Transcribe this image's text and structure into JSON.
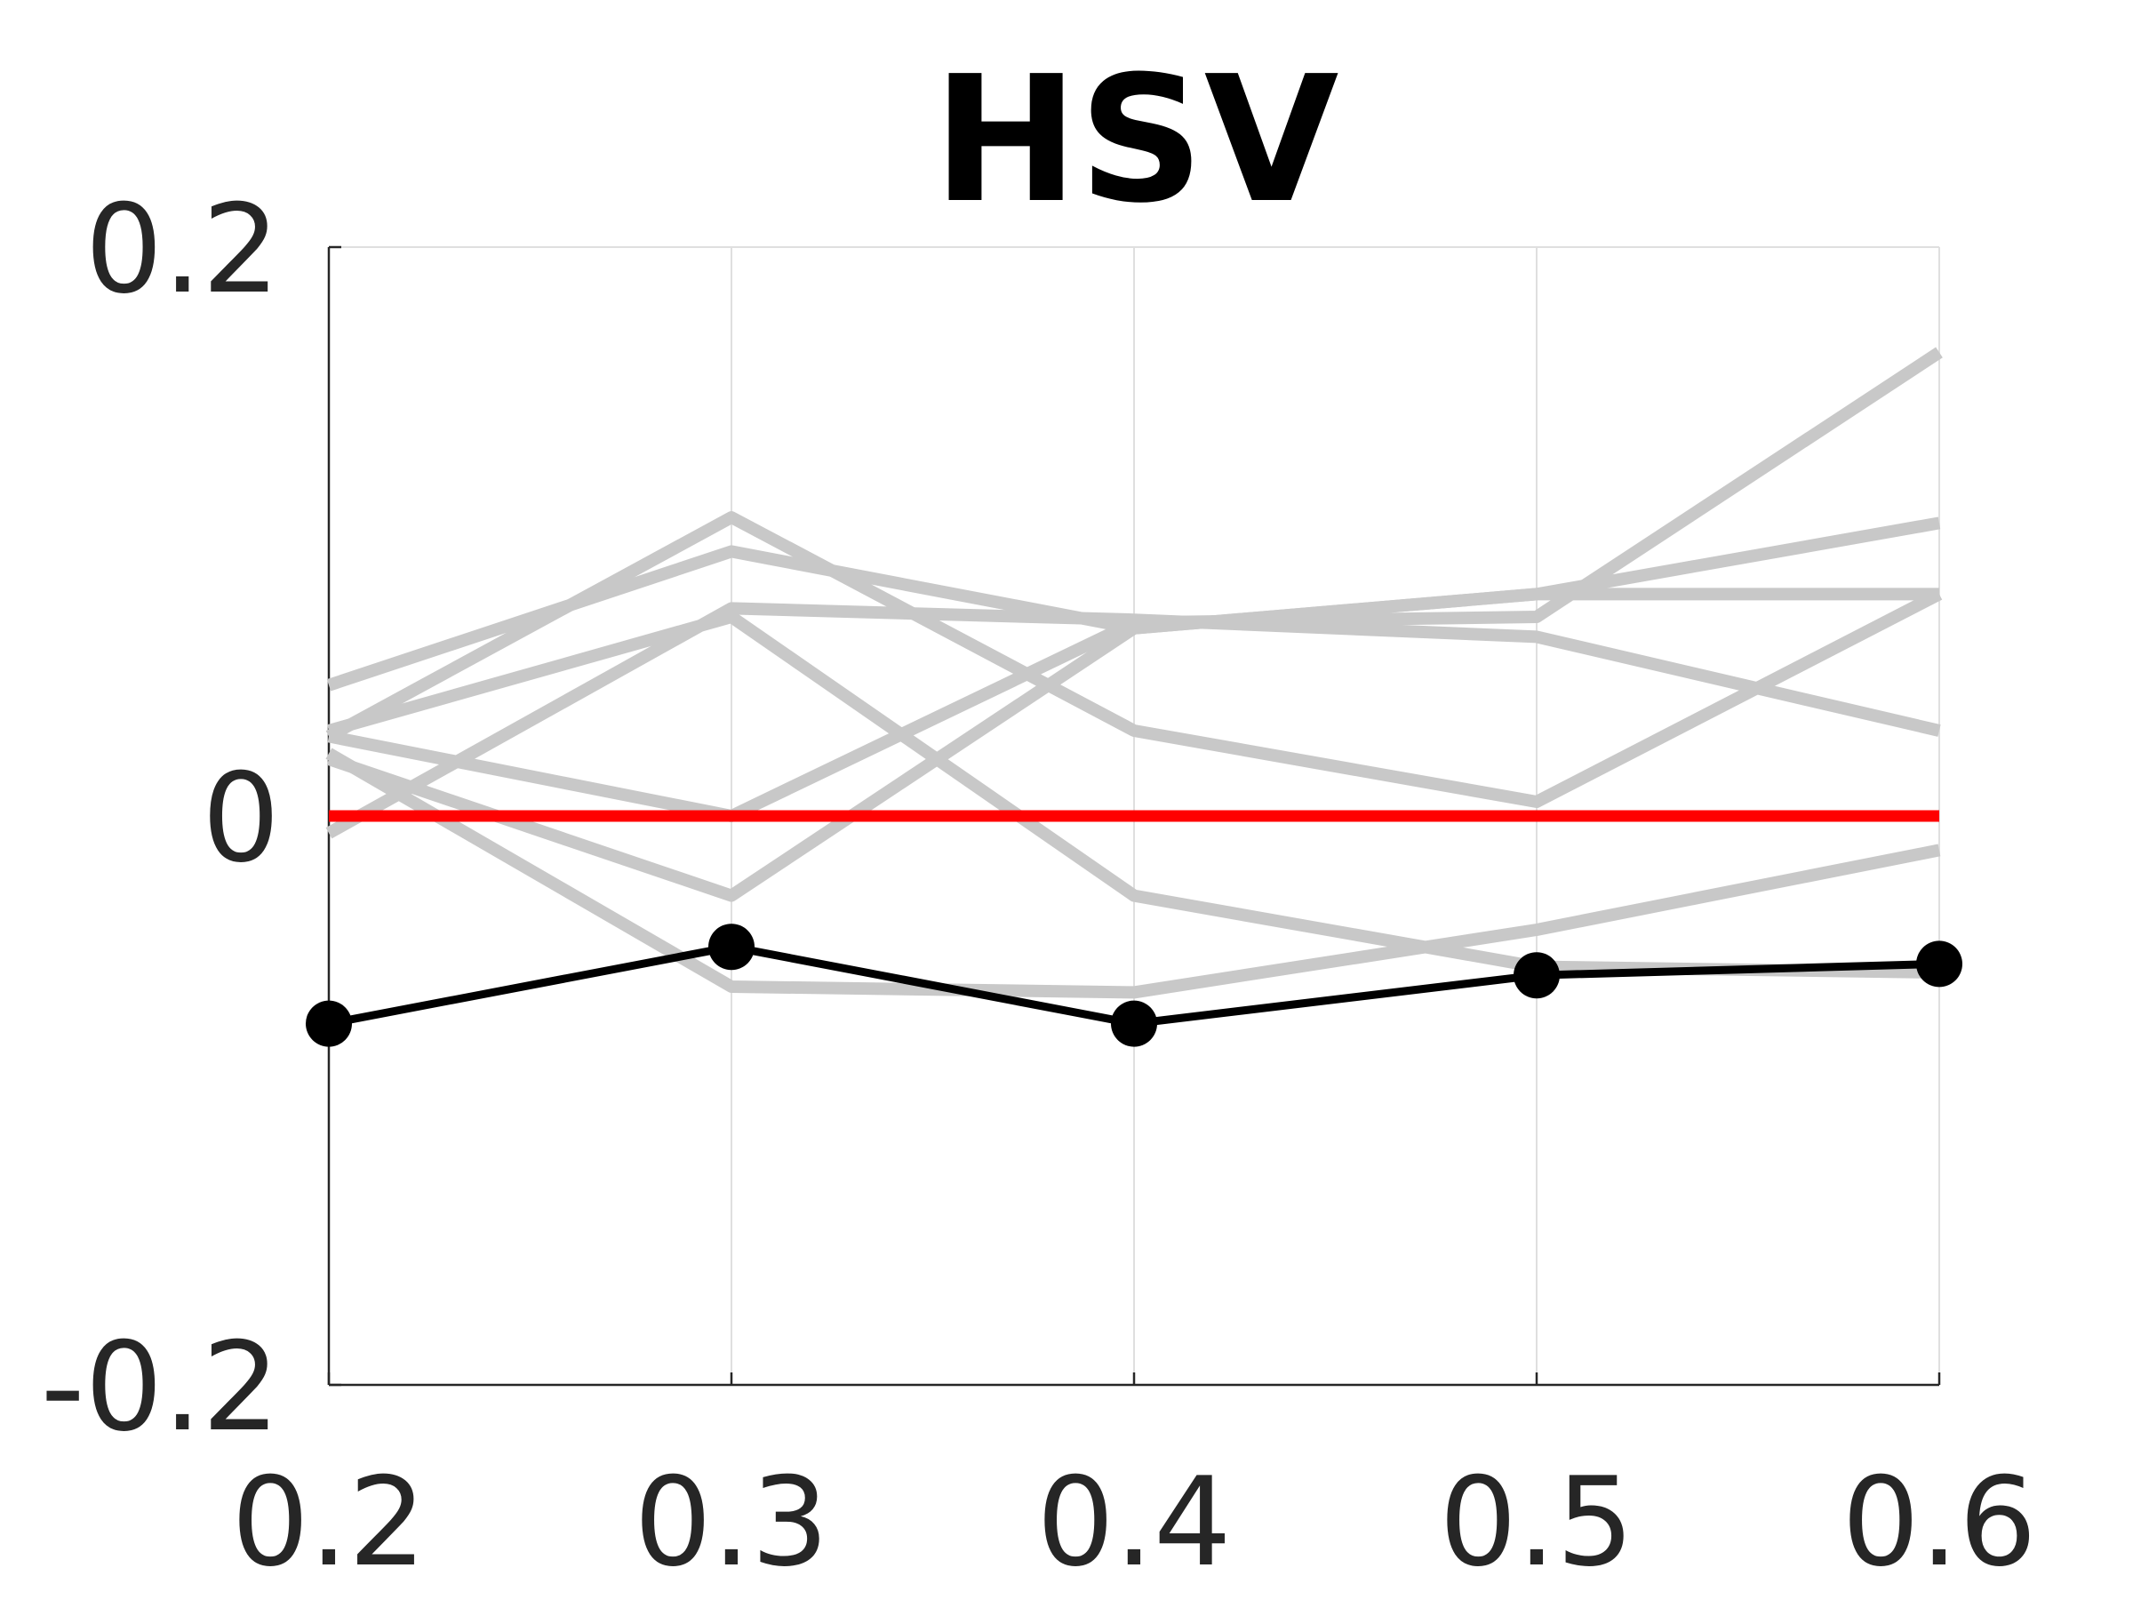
{
  "chart_data": {
    "type": "line",
    "title": "HSV",
    "xlabel": "",
    "ylabel": "",
    "x": [
      0.2,
      0.3,
      0.4,
      0.5,
      0.6
    ],
    "xticks": [
      "0.2",
      "0.3",
      "0.4",
      "0.5",
      "0.6"
    ],
    "xlim": [
      0.2,
      0.6
    ],
    "ylim": [
      -0.2,
      0.2
    ],
    "yticks": [
      {
        "value": 0.2,
        "label": "0.2"
      },
      {
        "value": 0,
        "label": "0"
      },
      {
        "value": -0.2,
        "label": "-0.2"
      }
    ],
    "grid": "vertical",
    "background_series": [
      {
        "values": [
          0.046,
          0.093,
          0.066,
          0.078,
          0.103
        ]
      },
      {
        "values": [
          0.028,
          0.105,
          0.03,
          0.005,
          0.078
        ]
      },
      {
        "values": [
          0.03,
          0.07,
          -0.028,
          -0.053,
          -0.055
        ]
      },
      {
        "values": [
          0.028,
          0.0,
          0.068,
          0.07,
          0.163
        ]
      },
      {
        "values": [
          -0.006,
          0.073,
          0.069,
          0.063,
          0.03
        ]
      },
      {
        "values": [
          0.02,
          -0.028,
          0.066,
          0.078,
          0.078
        ]
      },
      {
        "values": [
          0.022,
          -0.06,
          -0.062,
          -0.04,
          -0.012
        ]
      }
    ],
    "reference_line": {
      "value": 0,
      "color": "#ff0000"
    },
    "series": [
      {
        "values": [
          -0.073,
          -0.046,
          -0.073,
          -0.056,
          -0.052
        ],
        "color": "#000000",
        "markers": true
      }
    ],
    "colors": {
      "background_series": "#c8c8c8",
      "main_series": "#000000",
      "reference": "#ff0000",
      "grid": "#dfdfdf",
      "axis": "#262626"
    }
  }
}
